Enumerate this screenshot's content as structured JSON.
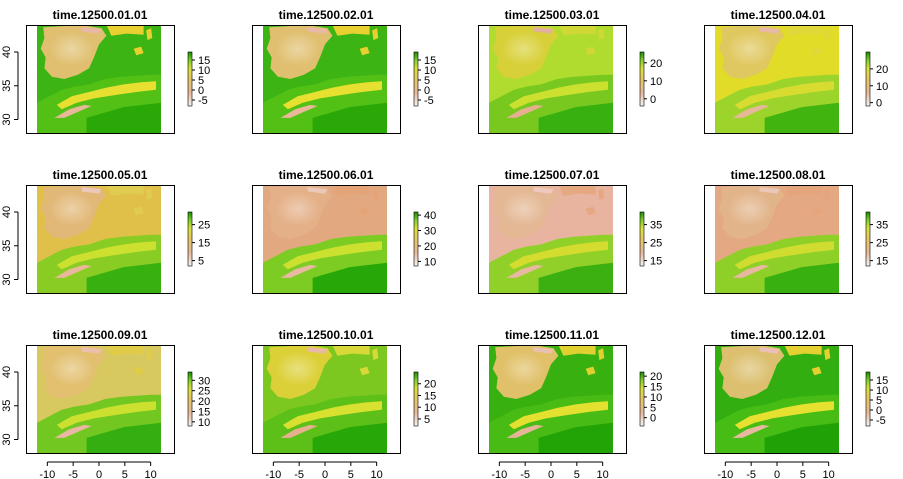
{
  "figure": {
    "layout": {
      "rows": 3,
      "cols": 4
    },
    "background": "#ffffff",
    "map_extent": {
      "x": [
        -12,
        12
      ],
      "y": [
        28,
        44
      ]
    },
    "x_ticks": [
      "-10",
      "-5",
      "0",
      "5",
      "10"
    ],
    "x_tick_values": [
      -10,
      -5,
      0,
      5,
      10
    ],
    "y_ticks": [
      "30",
      "35",
      "40"
    ],
    "y_tick_values": [
      30,
      35,
      40
    ],
    "palette": [
      "#ffffff",
      "#f0c8b8",
      "#e6a880",
      "#e2bc70",
      "#e8d838",
      "#d8e038",
      "#a0d840",
      "#5cc81c",
      "#1a8c00"
    ]
  },
  "chart_data": [
    {
      "type": "heatmap",
      "title": "time.12500.01.01",
      "colorbar": {
        "range": [
          -8,
          19
        ],
        "ticks": [
          -5,
          0,
          5,
          10,
          15
        ],
        "labels": [
          "-5",
          "0",
          "5",
          "10",
          "15"
        ]
      }
    },
    {
      "type": "heatmap",
      "title": "time.12500.02.01",
      "colorbar": {
        "range": [
          -8,
          19
        ],
        "ticks": [
          -5,
          0,
          5,
          10,
          15
        ],
        "labels": [
          "-5",
          "0",
          "5",
          "10",
          "15"
        ]
      }
    },
    {
      "type": "heatmap",
      "title": "time.12500.03.01",
      "colorbar": {
        "range": [
          -4,
          26
        ],
        "ticks": [
          0,
          10,
          20
        ],
        "labels": [
          "0",
          "10",
          "20"
        ]
      }
    },
    {
      "type": "heatmap",
      "title": "time.12500.04.01",
      "colorbar": {
        "range": [
          -2,
          30
        ],
        "ticks": [
          0,
          10,
          20
        ],
        "labels": [
          "0",
          "10",
          "20"
        ]
      }
    },
    {
      "type": "heatmap",
      "title": "time.12500.05.01",
      "colorbar": {
        "range": [
          2,
          32
        ],
        "ticks": [
          5,
          15,
          25
        ],
        "labels": [
          "5",
          "15",
          "25"
        ]
      }
    },
    {
      "type": "heatmap",
      "title": "time.12500.06.01",
      "colorbar": {
        "range": [
          7,
          42
        ],
        "ticks": [
          10,
          20,
          30,
          40
        ],
        "labels": [
          "10",
          "20",
          "30",
          "40"
        ]
      }
    },
    {
      "type": "heatmap",
      "title": "time.12500.07.01",
      "colorbar": {
        "range": [
          12,
          42
        ],
        "ticks": [
          15,
          25,
          35
        ],
        "labels": [
          "15",
          "25",
          "35"
        ]
      }
    },
    {
      "type": "heatmap",
      "title": "time.12500.08.01",
      "colorbar": {
        "range": [
          12,
          42
        ],
        "ticks": [
          15,
          25,
          35
        ],
        "labels": [
          "15",
          "25",
          "35"
        ]
      }
    },
    {
      "type": "heatmap",
      "title": "time.12500.09.01",
      "colorbar": {
        "range": [
          8,
          34
        ],
        "ticks": [
          10,
          15,
          20,
          25,
          30
        ],
        "labels": [
          "10",
          "15",
          "20",
          "25",
          "30"
        ]
      }
    },
    {
      "type": "heatmap",
      "title": "time.12500.10.01",
      "colorbar": {
        "range": [
          2,
          25
        ],
        "ticks": [
          5,
          10,
          15,
          20
        ],
        "labels": [
          "5",
          "10",
          "15",
          "20"
        ]
      }
    },
    {
      "type": "heatmap",
      "title": "time.12500.11.01",
      "colorbar": {
        "range": [
          -4,
          22
        ],
        "ticks": [
          0,
          5,
          10,
          15,
          20
        ],
        "labels": [
          "0",
          "5",
          "10",
          "15",
          "20"
        ]
      }
    },
    {
      "type": "heatmap",
      "title": "time.12500.12.01",
      "colorbar": {
        "range": [
          -8,
          19
        ],
        "ticks": [
          -5,
          0,
          5,
          10,
          15
        ],
        "labels": [
          "-5",
          "0",
          "5",
          "10",
          "15"
        ]
      }
    }
  ]
}
